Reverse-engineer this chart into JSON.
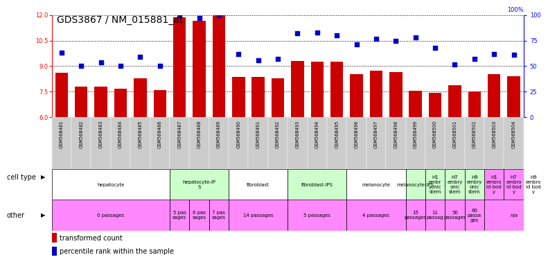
{
  "title": "GDS3867 / NM_015881_at",
  "samples": [
    "GSM568481",
    "GSM568482",
    "GSM568483",
    "GSM568484",
    "GSM568485",
    "GSM568486",
    "GSM568487",
    "GSM568488",
    "GSM568489",
    "GSM568490",
    "GSM568491",
    "GSM568492",
    "GSM568493",
    "GSM568494",
    "GSM568495",
    "GSM568496",
    "GSM568497",
    "GSM568498",
    "GSM568499",
    "GSM568500",
    "GSM568501",
    "GSM568502",
    "GSM568503",
    "GSM568504"
  ],
  "bar_values": [
    8.6,
    7.8,
    7.8,
    7.7,
    8.3,
    7.6,
    11.85,
    11.65,
    12.0,
    8.35,
    8.35,
    8.3,
    9.3,
    9.25,
    9.25,
    8.55,
    8.75,
    8.65,
    7.55,
    7.45,
    7.9,
    7.5,
    8.55,
    8.4
  ],
  "dot_values": [
    63,
    50,
    54,
    50,
    59,
    50,
    100,
    97,
    100,
    62,
    56,
    57,
    82,
    83,
    80,
    71,
    77,
    75,
    78,
    68,
    52,
    57,
    62,
    61
  ],
  "ylim": [
    6,
    12
  ],
  "yticks": [
    6,
    7.5,
    9,
    10.5,
    12
  ],
  "yticks_right": [
    0,
    25,
    50,
    75,
    100
  ],
  "cell_types": [
    {
      "label": "hepatocyte",
      "start": 0,
      "end": 6,
      "color": "#ffffff"
    },
    {
      "label": "hepatocyte-iP\nS",
      "start": 6,
      "end": 9,
      "color": "#ccffcc"
    },
    {
      "label": "fibroblast",
      "start": 9,
      "end": 12,
      "color": "#ffffff"
    },
    {
      "label": "fibroblast-IPS",
      "start": 12,
      "end": 15,
      "color": "#ccffcc"
    },
    {
      "label": "melanocyte",
      "start": 15,
      "end": 18,
      "color": "#ffffff"
    },
    {
      "label": "melanocyte-IPS",
      "start": 18,
      "end": 19,
      "color": "#ccffcc"
    },
    {
      "label": "H1\nembr\nyonic\nstem",
      "start": 19,
      "end": 20,
      "color": "#ccffcc"
    },
    {
      "label": "H7\nembry\nonic\nstem",
      "start": 20,
      "end": 21,
      "color": "#ccffcc"
    },
    {
      "label": "H9\nembry\nonic\nstem",
      "start": 21,
      "end": 22,
      "color": "#ccffcc"
    },
    {
      "label": "H1\nembro\nid bod\ny",
      "start": 22,
      "end": 23,
      "color": "#ff88ff"
    },
    {
      "label": "H7\nembro\nid bod\ny",
      "start": 23,
      "end": 24,
      "color": "#ff88ff"
    },
    {
      "label": "H9\nembro\nid bod\ny",
      "start": 24,
      "end": 25,
      "color": "#ff88ff"
    }
  ],
  "other_row": [
    {
      "label": "0 passages",
      "start": 0,
      "end": 6,
      "color": "#ff88ff"
    },
    {
      "label": "5 pas\nsages",
      "start": 6,
      "end": 7,
      "color": "#ff88ff"
    },
    {
      "label": "6 pas\nsages",
      "start": 7,
      "end": 8,
      "color": "#ff88ff"
    },
    {
      "label": "7 pas\nsages",
      "start": 8,
      "end": 9,
      "color": "#ff88ff"
    },
    {
      "label": "14 passages",
      "start": 9,
      "end": 12,
      "color": "#ff88ff"
    },
    {
      "label": "5 passages",
      "start": 12,
      "end": 15,
      "color": "#ff88ff"
    },
    {
      "label": "4 passages",
      "start": 15,
      "end": 18,
      "color": "#ff88ff"
    },
    {
      "label": "15\npassages",
      "start": 18,
      "end": 19,
      "color": "#ff88ff"
    },
    {
      "label": "11\npassag",
      "start": 19,
      "end": 20,
      "color": "#ff88ff"
    },
    {
      "label": "50\npassages",
      "start": 20,
      "end": 21,
      "color": "#ff88ff"
    },
    {
      "label": "60\npassa\nges",
      "start": 21,
      "end": 22,
      "color": "#ff88ff"
    },
    {
      "label": "n/a",
      "start": 22,
      "end": 25,
      "color": "#ff88ff"
    }
  ],
  "bar_color": "#cc0000",
  "dot_color": "#0000cc",
  "bg_color": "#ffffff",
  "sample_bg": "#cccccc",
  "title_fontsize": 10,
  "tick_fontsize": 6,
  "label_fontsize": 7,
  "cell_fontsize": 5,
  "legend_fontsize": 7
}
